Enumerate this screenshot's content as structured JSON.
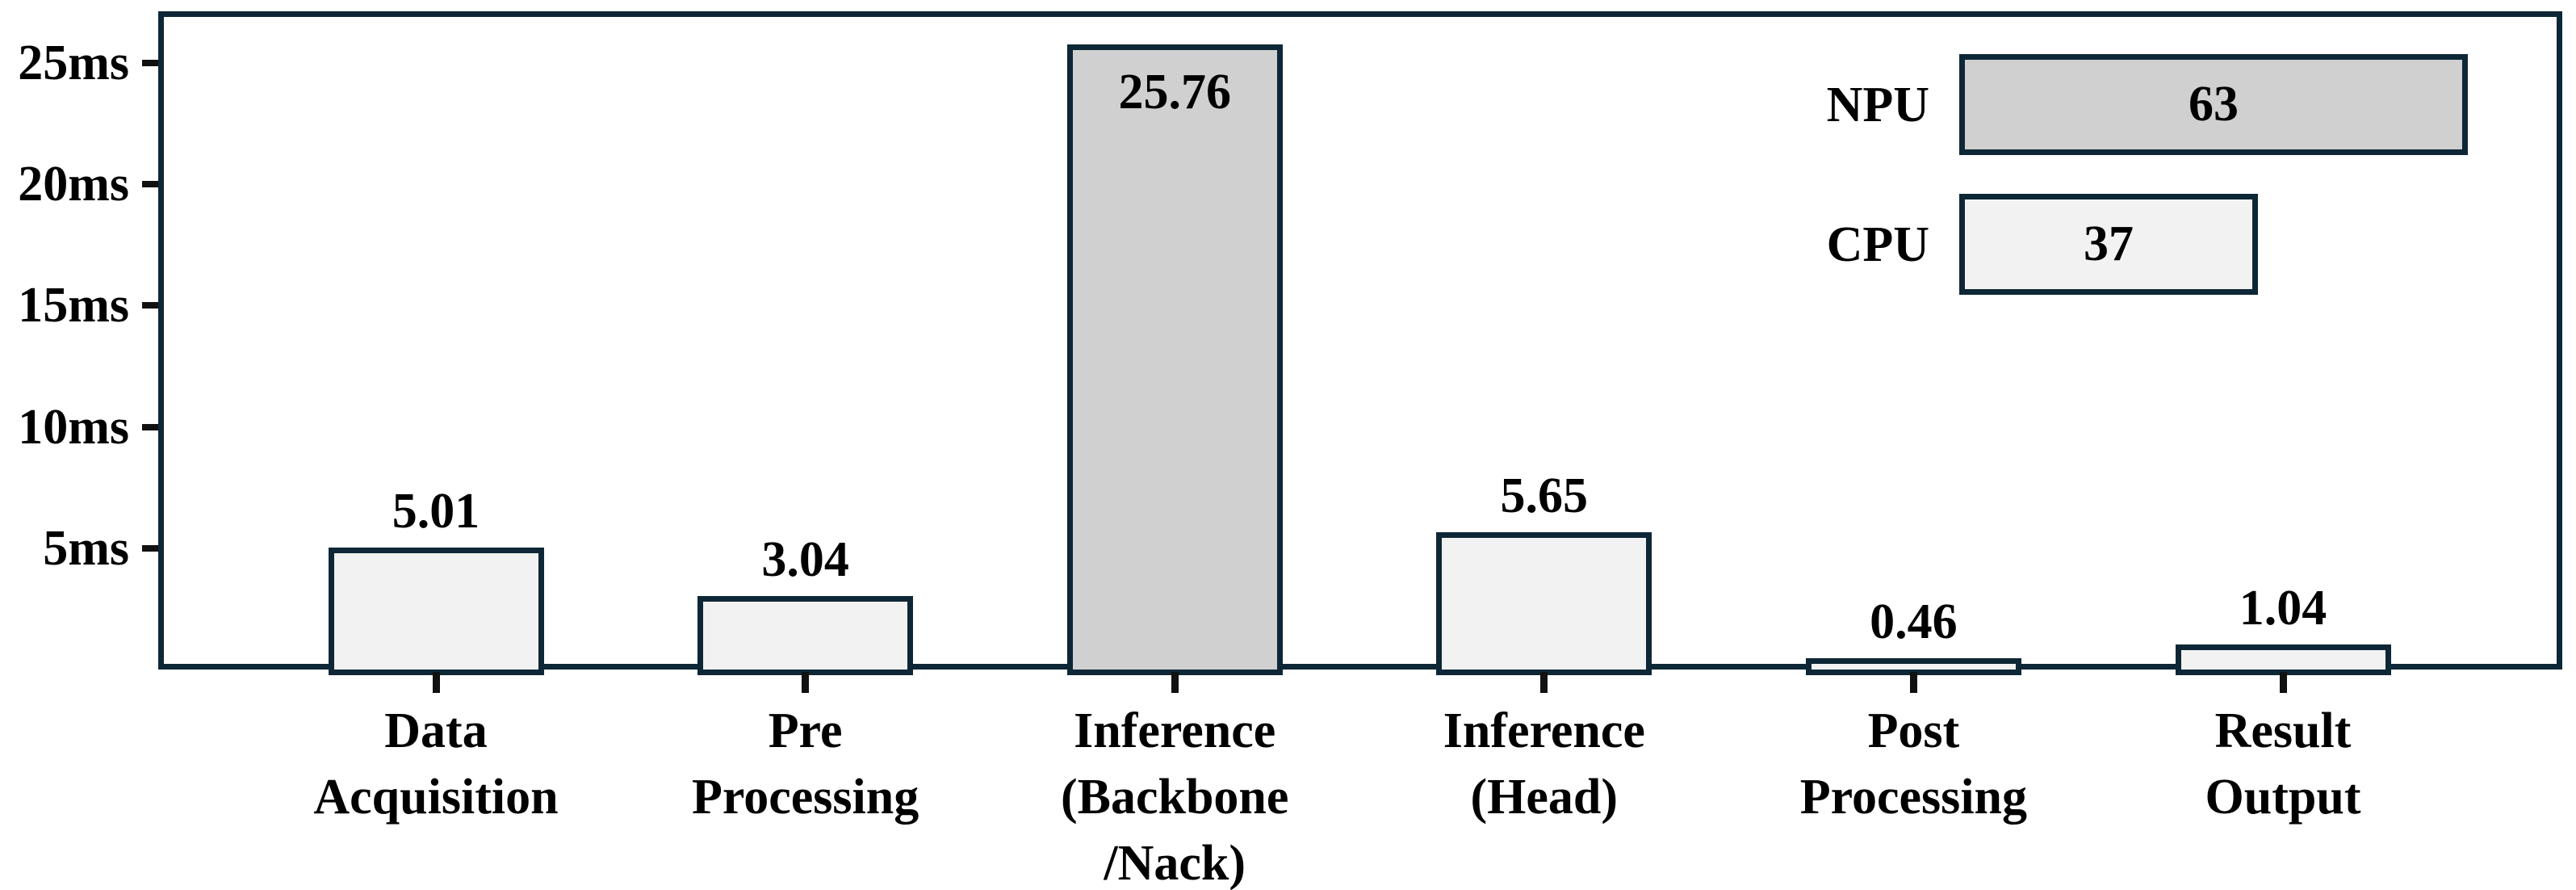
{
  "chart_data": {
    "type": "bar",
    "title": "",
    "unit": "ms",
    "categories": [
      "Data Acquisition",
      "Pre Processing",
      "Inference (Backbone /Nack)",
      "Inference (Head)",
      "Post Processing",
      "Result Output"
    ],
    "category_lines": [
      [
        "Data",
        "Acquisition"
      ],
      [
        "Pre",
        "Processing"
      ],
      [
        "Inference",
        "(Backbone",
        "/Nack)"
      ],
      [
        "Inference",
        "(Head)"
      ],
      [
        "Post",
        "Processing"
      ],
      [
        "Result",
        "Output"
      ]
    ],
    "values": [
      5.01,
      3.04,
      25.76,
      5.65,
      0.46,
      1.04
    ],
    "value_labels": [
      "5.01",
      "3.04",
      "25.76",
      "5.65",
      "0.46",
      "1.04"
    ],
    "bar_series": [
      "CPU",
      "CPU",
      "NPU",
      "CPU",
      "CPU",
      "CPU"
    ],
    "label_inside_indices": [
      2
    ],
    "yticks": [
      {
        "v": 5,
        "label": "5ms"
      },
      {
        "v": 10,
        "label": "10ms"
      },
      {
        "v": 15,
        "label": "15ms"
      },
      {
        "v": 20,
        "label": "20ms"
      },
      {
        "v": 25,
        "label": "25ms"
      }
    ],
    "ylim": [
      0,
      27
    ],
    "xlabel": "",
    "ylabel": "",
    "grid": false,
    "legend": {
      "position": "top-right",
      "entries": [
        {
          "label": "NPU",
          "value": 63,
          "value_label": "63"
        },
        {
          "label": "CPU",
          "value": 37,
          "value_label": "37"
        }
      ]
    },
    "colors": {
      "axis_border": "#0e2736",
      "npu_fill": "#d0d0d0",
      "cpu_fill": "#f2f2f2",
      "tick_color": "#111111",
      "text": "#000000",
      "background": "#ffffff"
    }
  }
}
